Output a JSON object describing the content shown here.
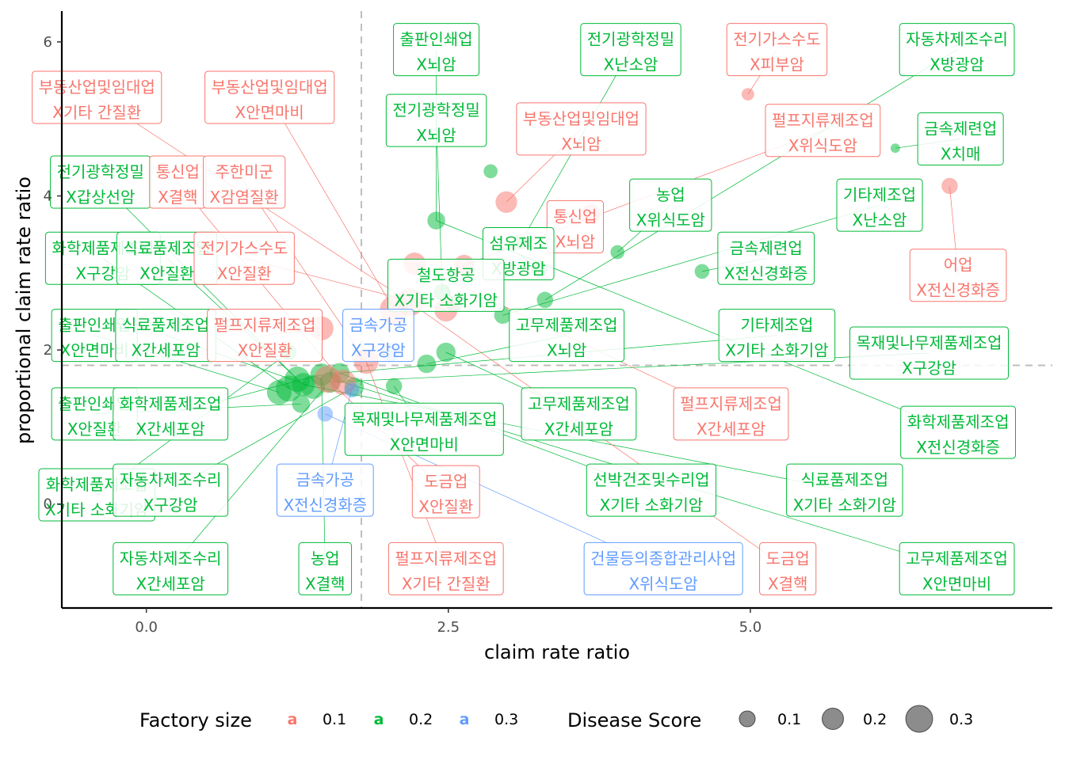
{
  "chart_data": {
    "type": "scatter",
    "title": "",
    "xlabel": "claim rate ratio",
    "ylabel": "proportional claim rate ratio",
    "xlim": [
      -0.7,
      7.5
    ],
    "ylim": [
      -1.35,
      6.4
    ],
    "x_ticks": [
      0.0,
      2.5,
      5.0
    ],
    "x_tick_labels": [
      "0.0",
      "2.5",
      "5.0"
    ],
    "y_ticks": [
      0,
      2,
      4,
      6
    ],
    "y_tick_labels": [
      "0",
      "2",
      "4",
      "6"
    ],
    "reference_lines": {
      "x": 1.78,
      "y": 1.8
    },
    "grid": false,
    "legend_position": "bottom",
    "colors": {
      "0.1": "#F8766D",
      "0.2": "#00BA38",
      "0.3": "#619CFF"
    },
    "legend": {
      "color_title": "Factory size",
      "color_keys": [
        {
          "label": "0.1",
          "glyph": "a",
          "group": "0.1"
        },
        {
          "label": "0.2",
          "glyph": "a",
          "group": "0.2"
        },
        {
          "label": "0.3",
          "glyph": "a",
          "group": "0.3"
        }
      ],
      "size_title": "Disease Score",
      "size_keys": [
        {
          "label": "0.1",
          "value": 0.1
        },
        {
          "label": "0.2",
          "value": 0.2
        },
        {
          "label": "0.3",
          "value": 0.3
        }
      ]
    },
    "points": [
      {
        "x": 1.1,
        "y": 1.45,
        "score": 0.22,
        "group": "0.2"
      },
      {
        "x": 1.18,
        "y": 1.5,
        "score": 0.24,
        "group": "0.2"
      },
      {
        "x": 1.25,
        "y": 1.62,
        "score": 0.23,
        "group": "0.2"
      },
      {
        "x": 1.3,
        "y": 1.55,
        "score": 0.2,
        "group": "0.2"
      },
      {
        "x": 1.38,
        "y": 1.52,
        "score": 0.21,
        "group": "0.2"
      },
      {
        "x": 1.45,
        "y": 1.68,
        "score": 0.19,
        "group": "0.2"
      },
      {
        "x": 1.52,
        "y": 1.58,
        "score": 0.17,
        "group": "0.2"
      },
      {
        "x": 1.6,
        "y": 1.7,
        "score": 0.16,
        "group": "0.2"
      },
      {
        "x": 1.28,
        "y": 1.3,
        "score": 0.13,
        "group": "0.2"
      },
      {
        "x": 1.72,
        "y": 1.52,
        "score": 0.15,
        "group": "0.2"
      },
      {
        "x": 1.18,
        "y": 1.97,
        "score": 0.1,
        "group": "0.2"
      },
      {
        "x": 2.05,
        "y": 1.53,
        "score": 0.11,
        "group": "0.2"
      },
      {
        "x": 2.32,
        "y": 1.82,
        "score": 0.14,
        "group": "0.2"
      },
      {
        "x": 2.48,
        "y": 1.97,
        "score": 0.15,
        "group": "0.2"
      },
      {
        "x": 2.4,
        "y": 3.68,
        "score": 0.13,
        "group": "0.2"
      },
      {
        "x": 2.45,
        "y": 2.75,
        "score": 0.12,
        "group": "0.2"
      },
      {
        "x": 2.55,
        "y": 2.6,
        "score": 0.11,
        "group": "0.2"
      },
      {
        "x": 2.85,
        "y": 4.32,
        "score": 0.08,
        "group": "0.2"
      },
      {
        "x": 2.95,
        "y": 2.45,
        "score": 0.12,
        "group": "0.2"
      },
      {
        "x": 3.1,
        "y": 3.4,
        "score": 0.09,
        "group": "0.2"
      },
      {
        "x": 3.25,
        "y": 3.05,
        "score": 0.12,
        "group": "0.2"
      },
      {
        "x": 3.3,
        "y": 2.65,
        "score": 0.11,
        "group": "0.2"
      },
      {
        "x": 3.9,
        "y": 3.27,
        "score": 0.08,
        "group": "0.2"
      },
      {
        "x": 4.6,
        "y": 3.02,
        "score": 0.09,
        "group": "0.2"
      },
      {
        "x": 6.2,
        "y": 4.62,
        "score": 0.02,
        "group": "0.2"
      },
      {
        "x": 1.5,
        "y": 1.62,
        "score": 0.25,
        "group": "0.1"
      },
      {
        "x": 1.63,
        "y": 1.58,
        "score": 0.23,
        "group": "0.1"
      },
      {
        "x": 1.45,
        "y": 2.28,
        "score": 0.21,
        "group": "0.1"
      },
      {
        "x": 1.82,
        "y": 1.85,
        "score": 0.22,
        "group": "0.1"
      },
      {
        "x": 2.05,
        "y": 2.52,
        "score": 0.27,
        "group": "0.1"
      },
      {
        "x": 2.18,
        "y": 2.62,
        "score": 0.26,
        "group": "0.1"
      },
      {
        "x": 2.22,
        "y": 3.12,
        "score": 0.19,
        "group": "0.1"
      },
      {
        "x": 2.48,
        "y": 2.52,
        "score": 0.2,
        "group": "0.1"
      },
      {
        "x": 2.63,
        "y": 3.1,
        "score": 0.17,
        "group": "0.1"
      },
      {
        "x": 2.98,
        "y": 3.92,
        "score": 0.18,
        "group": "0.1"
      },
      {
        "x": 3.68,
        "y": 3.77,
        "score": 0.15,
        "group": "0.1"
      },
      {
        "x": 4.98,
        "y": 5.32,
        "score": 0.06,
        "group": "0.1"
      },
      {
        "x": 6.65,
        "y": 4.13,
        "score": 0.11,
        "group": "0.1"
      },
      {
        "x": 1.48,
        "y": 1.17,
        "score": 0.1,
        "group": "0.3"
      },
      {
        "x": 1.7,
        "y": 1.48,
        "score": 0.09,
        "group": "0.3"
      },
      {
        "x": 2.02,
        "y": 1.97,
        "score": 0.14,
        "group": "0.3"
      }
    ],
    "labels": [
      {
        "line1": "출판인쇄업",
        "line2": "X뇌암",
        "group": "0.2",
        "lx": 2.4,
        "ly": 5.9,
        "px": 2.4,
        "py": 3.68
      },
      {
        "line1": "전기광학정밀",
        "line2": "X난소암",
        "group": "0.2",
        "lx": 4.01,
        "ly": 5.9,
        "px": 3.1,
        "py": 3.4
      },
      {
        "line1": "전기가스수도",
        "line2": "X피부암",
        "group": "0.1",
        "lx": 5.22,
        "ly": 5.9,
        "px": 4.98,
        "py": 5.32
      },
      {
        "line1": "자동차제조수리",
        "line2": "X방광암",
        "group": "0.2",
        "lx": 6.71,
        "ly": 5.9,
        "px": 3.3,
        "py": 2.65
      },
      {
        "line1": "부동산업및임대업",
        "line2": "X기타 간질환",
        "group": "0.1",
        "lx": -0.41,
        "ly": 5.28,
        "px": 2.18,
        "py": 2.62
      },
      {
        "line1": "부동산업및임대업",
        "line2": "X안면마비",
        "group": "0.1",
        "lx": 1.02,
        "ly": 5.28,
        "px": 2.05,
        "py": 2.52
      },
      {
        "line1": "전기광학정밀",
        "line2": "X뇌암",
        "group": "0.2",
        "lx": 2.4,
        "ly": 4.98,
        "px": 2.45,
        "py": 2.75
      },
      {
        "line1": "부동산업및임대업",
        "line2": "X뇌암",
        "group": "0.1",
        "lx": 3.6,
        "ly": 4.87,
        "px": 2.98,
        "py": 3.92
      },
      {
        "line1": "펄프지류제조업",
        "line2": "X위식도암",
        "group": "0.1",
        "lx": 5.6,
        "ly": 4.85,
        "px": 2.63,
        "py": 3.1
      },
      {
        "line1": "금속제련업",
        "line2": "X치매",
        "group": "0.2",
        "lx": 6.74,
        "ly": 4.74,
        "px": 6.2,
        "py": 4.62
      },
      {
        "line1": "전기광학정밀",
        "line2": "X갑상선암",
        "group": "0.2",
        "lx": -0.38,
        "ly": 4.18,
        "px": 1.25,
        "py": 1.62
      },
      {
        "line1": "통신업",
        "line2": "X결핵",
        "group": "0.1",
        "lx": 0.26,
        "ly": 4.18,
        "px": 1.63,
        "py": 1.58
      },
      {
        "line1": "주한미군",
        "line2": "X감염질환",
        "group": "0.1",
        "lx": 0.81,
        "ly": 4.18,
        "px": 1.82,
        "py": 1.85
      },
      {
        "line1": "농업",
        "line2": "X위식도암",
        "group": "0.2",
        "lx": 4.34,
        "ly": 3.88,
        "px": 3.9,
        "py": 3.27
      },
      {
        "line1": "기타제조업",
        "line2": "X난소암",
        "group": "0.2",
        "lx": 6.07,
        "ly": 3.88,
        "px": 2.95,
        "py": 2.45
      },
      {
        "line1": "통신업",
        "line2": "X뇌암",
        "group": "0.1",
        "lx": 3.55,
        "ly": 3.6,
        "px": 3.68,
        "py": 3.77
      },
      {
        "line1": "화학제품제조업",
        "line2": "X구강암",
        "group": "0.2",
        "lx": -0.36,
        "ly": 3.19,
        "px": 1.18,
        "py": 1.5
      },
      {
        "line1": "식료품제조업",
        "line2": "X안질환",
        "group": "0.2",
        "lx": 0.17,
        "ly": 3.19,
        "px": 1.3,
        "py": 1.55
      },
      {
        "line1": "전기가스수도",
        "line2": "X안질환",
        "group": "0.1",
        "lx": 0.81,
        "ly": 3.19,
        "px": 2.48,
        "py": 2.52
      },
      {
        "line1": "섬유제조",
        "line2": "X방광암",
        "group": "0.2",
        "lx": 3.08,
        "ly": 3.25,
        "px": 3.25,
        "py": 3.05
      },
      {
        "line1": "금속제련업",
        "line2": "X전신경화증",
        "group": "0.2",
        "lx": 5.13,
        "ly": 3.19,
        "px": 4.6,
        "py": 3.02
      },
      {
        "line1": "어업",
        "line2": "X전신경화증",
        "group": "0.1",
        "lx": 6.72,
        "ly": 2.97,
        "px": 6.65,
        "py": 4.13
      },
      {
        "line1": "철도항공",
        "line2": "X기타 소화기암",
        "group": "0.2",
        "lx": 2.48,
        "ly": 2.84,
        "px": 2.55,
        "py": 2.6
      },
      {
        "line1": "출판인쇄업",
        "line2": "X안면마비",
        "group": "0.2",
        "lx": -0.43,
        "ly": 2.19,
        "px": 1.1,
        "py": 1.45
      },
      {
        "line1": "식료품제조업",
        "line2": "X간세포암",
        "group": "0.2",
        "lx": 0.16,
        "ly": 2.19,
        "px": 1.38,
        "py": 1.52
      },
      {
        "line1": "펄프지류제조업",
        "line2": "X안질환",
        "group": "0.1",
        "lx": 0.98,
        "ly": 2.19,
        "px": 1.45,
        "py": 2.28
      },
      {
        "line1": "금속가공",
        "line2": "X구강암",
        "group": "0.3",
        "lx": 1.92,
        "ly": 2.19,
        "px": 2.02,
        "py": 1.97
      },
      {
        "line1": "고무제품제조업",
        "line2": "X뇌암",
        "group": "0.2",
        "lx": 3.48,
        "ly": 2.19,
        "px": 2.32,
        "py": 1.82
      },
      {
        "line1": "기타제조업",
        "line2": "X기타 소화기암",
        "group": "0.2",
        "lx": 5.22,
        "ly": 2.19,
        "px": 1.6,
        "py": 1.7
      },
      {
        "line1": "목재및나무제품제조업",
        "line2": "X구강암",
        "group": "0.2",
        "lx": 6.48,
        "ly": 1.96,
        "px": 1.52,
        "py": 1.58
      },
      {
        "line1": "출판인쇄업",
        "line2": "X안질환",
        "group": "0.2",
        "lx": -0.43,
        "ly": 1.17,
        "px": 1.28,
        "py": 1.3
      },
      {
        "line1": "화학제품제조업",
        "line2": "X간세포암",
        "group": "0.2",
        "lx": 0.2,
        "ly": 1.17,
        "px": 1.45,
        "py": 1.68
      },
      {
        "line1": "목재및나무제품제조업",
        "line2": "X안면마비",
        "group": "0.2",
        "lx": 2.3,
        "ly": 0.97,
        "px": 2.05,
        "py": 1.53
      },
      {
        "line1": "고무제품제조업",
        "line2": "X간세포암",
        "group": "0.2",
        "lx": 3.58,
        "ly": 1.17,
        "px": 2.48,
        "py": 1.97
      },
      {
        "line1": "펄프지류제조업",
        "line2": "X간세포암",
        "group": "0.1",
        "lx": 4.84,
        "ly": 1.17,
        "px": 2.22,
        "py": 3.12
      },
      {
        "line1": "화학제품제조업",
        "line2": "X전신경화증",
        "group": "0.2",
        "lx": 6.72,
        "ly": 0.93,
        "px": 2.4,
        "py": 3.68
      },
      {
        "line1": "화학제품제조업",
        "line2": "X기타 소화기암",
        "group": "0.2",
        "lx": -0.41,
        "ly": 0.12,
        "px": 1.18,
        "py": 1.97
      },
      {
        "line1": "자동차제조수리",
        "line2": "X구강암",
        "group": "0.2",
        "lx": 0.2,
        "ly": 0.18,
        "px": 1.72,
        "py": 1.52
      },
      {
        "line1": "금속가공",
        "line2": "X전신경화증",
        "group": "0.3",
        "lx": 1.48,
        "ly": 0.18,
        "px": 1.7,
        "py": 1.48
      },
      {
        "line1": "도금업",
        "line2": "X안질환",
        "group": "0.1",
        "lx": 2.48,
        "ly": 0.16,
        "px": 1.5,
        "py": 1.62
      },
      {
        "line1": "선박건조및수리업",
        "line2": "X기타 소화기암",
        "group": "0.2",
        "lx": 4.18,
        "ly": 0.18,
        "px": 1.6,
        "py": 1.7
      },
      {
        "line1": "식료품제조업",
        "line2": "X기타 소화기암",
        "group": "0.2",
        "lx": 5.78,
        "ly": 0.18,
        "px": 1.3,
        "py": 1.55
      },
      {
        "line1": "자동차제조수리",
        "line2": "X간세포암",
        "group": "0.2",
        "lx": 0.2,
        "ly": -0.84,
        "px": 1.48,
        "py": 1.52
      },
      {
        "line1": "농업",
        "line2": "X결핵",
        "group": "0.2",
        "lx": 1.48,
        "ly": -0.84,
        "px": 1.45,
        "py": 1.68
      },
      {
        "line1": "펄프지류제조업",
        "line2": "X기타 간질환",
        "group": "0.1",
        "lx": 2.48,
        "ly": -0.84,
        "px": 1.82,
        "py": 1.85
      },
      {
        "line1": "건물등의종합관리사업",
        "line2": "X위식도암",
        "group": "0.3",
        "lx": 4.28,
        "ly": -0.84,
        "px": 1.48,
        "py": 1.17
      },
      {
        "line1": "도금업",
        "line2": "X결핵",
        "group": "0.1",
        "lx": 5.31,
        "ly": -0.84,
        "px": 2.18,
        "py": 2.62
      },
      {
        "line1": "고무제품제조업",
        "line2": "X안면마비",
        "group": "0.2",
        "lx": 6.71,
        "ly": -0.84,
        "px": 1.63,
        "py": 1.58
      }
    ]
  }
}
